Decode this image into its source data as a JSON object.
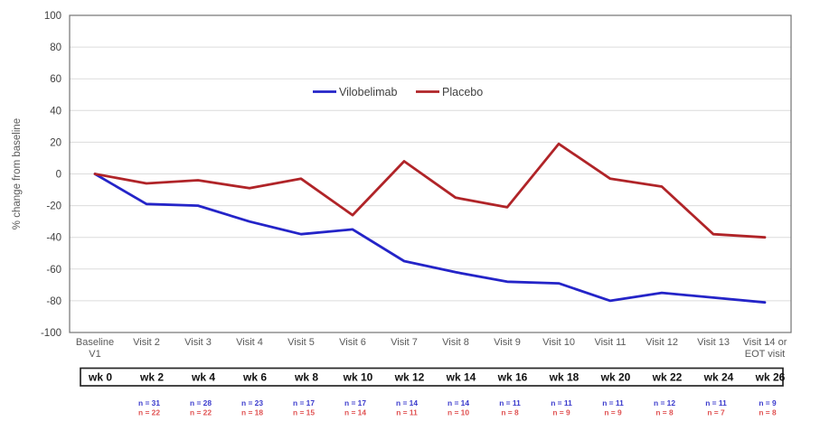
{
  "chart_data": {
    "type": "line",
    "title": "",
    "ylabel": "% change from baseline",
    "ylim": [
      -100,
      100
    ],
    "ytick_labels": [
      100,
      80,
      60,
      40,
      20,
      0,
      -20,
      -40,
      -60,
      -80,
      -100
    ],
    "grid": true,
    "legend_position": "top-center",
    "x_axis": {
      "visit_labels": [
        [
          "Baseline",
          "V1"
        ],
        [
          "Visit 2"
        ],
        [
          "Visit 3"
        ],
        [
          "Visit 4"
        ],
        [
          "Visit 5"
        ],
        [
          "Visit 6"
        ],
        [
          "Visit 7"
        ],
        [
          "Visit 8"
        ],
        [
          "Visit 9"
        ],
        [
          "Visit 10"
        ],
        [
          "Visit 11"
        ],
        [
          "Visit 12"
        ],
        [
          "Visit 13"
        ],
        [
          "Visit 14 or",
          "EOT visit"
        ]
      ],
      "week_labels": [
        "wk 0",
        "wk 2",
        "wk 4",
        "wk 6",
        "wk 8",
        "wk 10",
        "wk 12",
        "wk 14",
        "wk 16",
        "wk 18",
        "wk 20",
        "wk 22",
        "wk 24",
        "wk 26"
      ]
    },
    "series": [
      {
        "name": "Vilobelimab",
        "color": "#2424C8",
        "values": [
          0,
          -19,
          -20,
          -30,
          -38,
          -35,
          -55,
          -62,
          -68,
          -69,
          -80,
          -75,
          -78,
          -81
        ],
        "n_labels": [
          "",
          "n = 31",
          "n = 28",
          "n = 23",
          "n = 17",
          "n = 17",
          "n = 14",
          "n = 14",
          "n = 11",
          "n = 11",
          "n = 11",
          "n = 12",
          "n = 11",
          "n = 9"
        ],
        "n_color": "#3A3ACC"
      },
      {
        "name": "Placebo",
        "color": "#B02428",
        "values": [
          0,
          -6,
          -4,
          -9,
          -3,
          -26,
          8,
          -15,
          -21,
          19,
          -3,
          -8,
          -38,
          -40
        ],
        "n_labels": [
          "",
          "n = 22",
          "n = 22",
          "n = 18",
          "n = 15",
          "n = 14",
          "n = 11",
          "n = 10",
          "n = 8",
          "n = 9",
          "n = 9",
          "n = 8",
          "n = 7",
          "n = 8"
        ],
        "n_color": "#E05252"
      }
    ],
    "colors": {
      "grid": "#DCDCDC",
      "plot_border": "#737373",
      "tick_text": "#404040",
      "axis_title_text": "#595959",
      "visit_text": "#595959",
      "week_text": "#111111",
      "week_box_border": "#262626",
      "legend_text": "#404040"
    }
  }
}
